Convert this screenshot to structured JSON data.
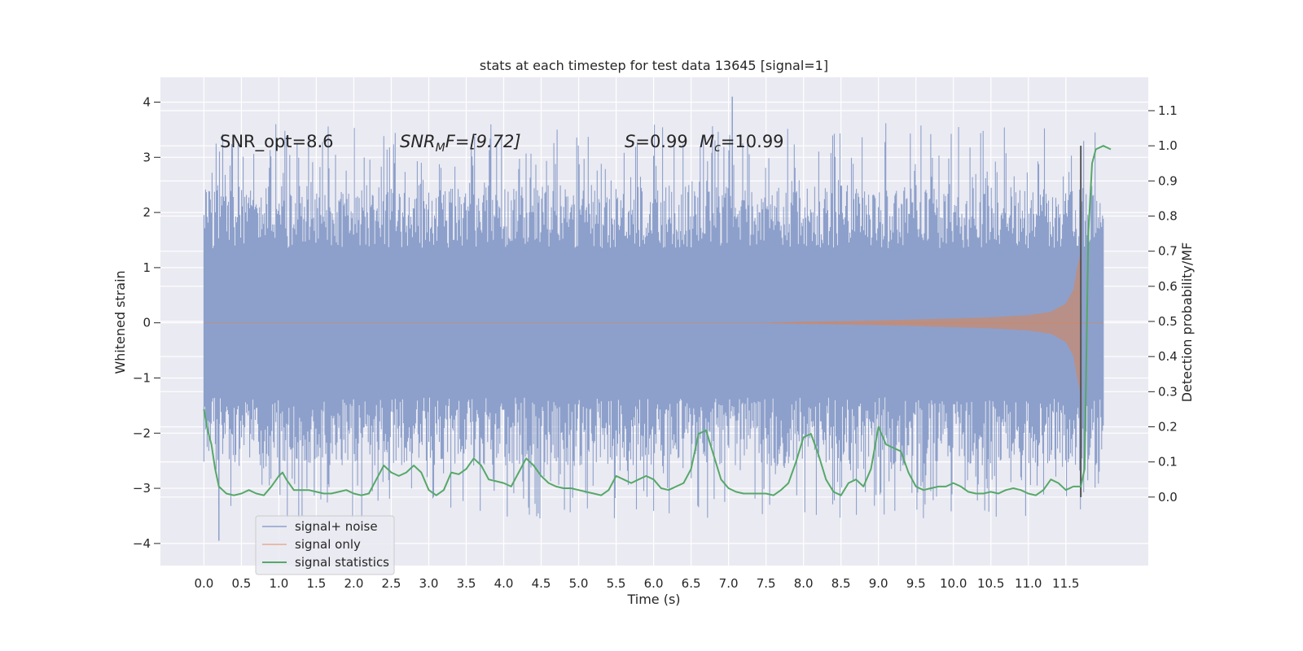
{
  "chart_data": {
    "type": "line",
    "title": "stats at each timestep for test data 13645 [signal=1]",
    "xlabel": "Time (s)",
    "ylabel": "Whitened strain",
    "y2label": "Detection probability/MF",
    "xlim": [
      -0.58,
      12.6
    ],
    "ylim": [
      -4.4,
      4.45
    ],
    "y2lim": [
      -0.195,
      1.195
    ],
    "xticks": [
      "0.0",
      "0.5",
      "1.0",
      "1.5",
      "2.0",
      "2.5",
      "3.0",
      "3.5",
      "4.0",
      "4.5",
      "5.0",
      "5.5",
      "6.0",
      "6.5",
      "7.0",
      "7.5",
      "8.0",
      "8.5",
      "9.0",
      "9.5",
      "10.0",
      "10.5",
      "11.0",
      "11.5"
    ],
    "yticks": [
      "4",
      "3",
      "2",
      "1",
      "0",
      "−1",
      "−2",
      "−3",
      "−4"
    ],
    "y2ticks": [
      "1.1",
      "1.0",
      "0.9",
      "0.8",
      "0.7",
      "0.6",
      "0.5",
      "0.4",
      "0.3",
      "0.2",
      "0.1",
      "0.0"
    ],
    "grid": true,
    "legend": "lower-left",
    "annotations": {
      "snr_opt": "SNR_opt=8.6",
      "snr_mf_sym": "SNR",
      "snr_mf_sub": "M",
      "snr_mf_rest": "F=[9.72]",
      "s_sym": "S",
      "s_rest": "=0.99",
      "mc_sym": "M",
      "mc_sub": "c",
      "mc_rest": "=10.99"
    },
    "merger_time": 11.7,
    "series": [
      {
        "name": "signal+ noise",
        "color": "#8da0cb",
        "t_range": [
          0.0,
          12.0
        ],
        "envelope": {
          "core": 1.35,
          "upper_typical": 2.5,
          "lower_typical": -2.6,
          "max": 4.1,
          "min": -3.95
        }
      },
      {
        "name": "signal only",
        "color": "#dd8452",
        "points": [
          [
            7.5,
            0.005
          ],
          [
            8.0,
            0.02
          ],
          [
            8.5,
            0.03
          ],
          [
            9.0,
            0.045
          ],
          [
            9.5,
            0.06
          ],
          [
            10.0,
            0.08
          ],
          [
            10.5,
            0.1
          ],
          [
            11.0,
            0.14
          ],
          [
            11.3,
            0.2
          ],
          [
            11.5,
            0.35
          ],
          [
            11.6,
            0.6
          ],
          [
            11.65,
            1.0
          ],
          [
            11.7,
            1.3
          ]
        ]
      },
      {
        "name": "signal statistics",
        "color": "#55a868",
        "points": [
          [
            0.0,
            0.25
          ],
          [
            0.05,
            0.19
          ],
          [
            0.1,
            0.15
          ],
          [
            0.15,
            0.08
          ],
          [
            0.2,
            0.03
          ],
          [
            0.25,
            0.02
          ],
          [
            0.3,
            0.01
          ],
          [
            0.4,
            0.005
          ],
          [
            0.5,
            0.01
          ],
          [
            0.6,
            0.02
          ],
          [
            0.7,
            0.01
          ],
          [
            0.8,
            0.005
          ],
          [
            0.9,
            0.03
          ],
          [
            1.0,
            0.06
          ],
          [
            1.05,
            0.07
          ],
          [
            1.1,
            0.05
          ],
          [
            1.2,
            0.02
          ],
          [
            1.3,
            0.02
          ],
          [
            1.4,
            0.02
          ],
          [
            1.5,
            0.015
          ],
          [
            1.6,
            0.01
          ],
          [
            1.7,
            0.01
          ],
          [
            1.8,
            0.015
          ],
          [
            1.9,
            0.02
          ],
          [
            2.0,
            0.01
          ],
          [
            2.1,
            0.005
          ],
          [
            2.2,
            0.01
          ],
          [
            2.3,
            0.05
          ],
          [
            2.4,
            0.09
          ],
          [
            2.5,
            0.07
          ],
          [
            2.6,
            0.06
          ],
          [
            2.7,
            0.07
          ],
          [
            2.8,
            0.09
          ],
          [
            2.9,
            0.07
          ],
          [
            3.0,
            0.02
          ],
          [
            3.1,
            0.005
          ],
          [
            3.2,
            0.02
          ],
          [
            3.3,
            0.07
          ],
          [
            3.4,
            0.065
          ],
          [
            3.5,
            0.08
          ],
          [
            3.6,
            0.11
          ],
          [
            3.7,
            0.09
          ],
          [
            3.8,
            0.05
          ],
          [
            3.9,
            0.045
          ],
          [
            4.0,
            0.04
          ],
          [
            4.1,
            0.03
          ],
          [
            4.2,
            0.07
          ],
          [
            4.3,
            0.11
          ],
          [
            4.4,
            0.09
          ],
          [
            4.5,
            0.06
          ],
          [
            4.6,
            0.04
          ],
          [
            4.7,
            0.03
          ],
          [
            4.8,
            0.025
          ],
          [
            4.9,
            0.025
          ],
          [
            5.0,
            0.02
          ],
          [
            5.1,
            0.015
          ],
          [
            5.2,
            0.01
          ],
          [
            5.3,
            0.005
          ],
          [
            5.4,
            0.02
          ],
          [
            5.5,
            0.06
          ],
          [
            5.6,
            0.05
          ],
          [
            5.7,
            0.04
          ],
          [
            5.8,
            0.05
          ],
          [
            5.9,
            0.06
          ],
          [
            6.0,
            0.05
          ],
          [
            6.1,
            0.025
          ],
          [
            6.2,
            0.02
          ],
          [
            6.3,
            0.03
          ],
          [
            6.4,
            0.04
          ],
          [
            6.5,
            0.08
          ],
          [
            6.6,
            0.18
          ],
          [
            6.7,
            0.19
          ],
          [
            6.8,
            0.12
          ],
          [
            6.9,
            0.05
          ],
          [
            7.0,
            0.025
          ],
          [
            7.1,
            0.015
          ],
          [
            7.2,
            0.01
          ],
          [
            7.3,
            0.01
          ],
          [
            7.4,
            0.01
          ],
          [
            7.5,
            0.01
          ],
          [
            7.6,
            0.005
          ],
          [
            7.7,
            0.02
          ],
          [
            7.8,
            0.04
          ],
          [
            7.9,
            0.1
          ],
          [
            8.0,
            0.17
          ],
          [
            8.1,
            0.18
          ],
          [
            8.2,
            0.12
          ],
          [
            8.3,
            0.05
          ],
          [
            8.4,
            0.015
          ],
          [
            8.5,
            0.005
          ],
          [
            8.6,
            0.04
          ],
          [
            8.7,
            0.05
          ],
          [
            8.8,
            0.03
          ],
          [
            8.9,
            0.08
          ],
          [
            9.0,
            0.2
          ],
          [
            9.1,
            0.15
          ],
          [
            9.2,
            0.14
          ],
          [
            9.3,
            0.13
          ],
          [
            9.4,
            0.07
          ],
          [
            9.5,
            0.03
          ],
          [
            9.6,
            0.02
          ],
          [
            9.7,
            0.025
          ],
          [
            9.8,
            0.03
          ],
          [
            9.9,
            0.03
          ],
          [
            10.0,
            0.04
          ],
          [
            10.1,
            0.03
          ],
          [
            10.2,
            0.015
          ],
          [
            10.3,
            0.01
          ],
          [
            10.4,
            0.01
          ],
          [
            10.5,
            0.015
          ],
          [
            10.6,
            0.01
          ],
          [
            10.7,
            0.02
          ],
          [
            10.8,
            0.025
          ],
          [
            10.9,
            0.02
          ],
          [
            11.0,
            0.01
          ],
          [
            11.1,
            0.005
          ],
          [
            11.2,
            0.02
          ],
          [
            11.3,
            0.05
          ],
          [
            11.4,
            0.04
          ],
          [
            11.5,
            0.02
          ],
          [
            11.6,
            0.03
          ],
          [
            11.7,
            0.03
          ],
          [
            11.75,
            0.08
          ],
          [
            11.8,
            0.75
          ],
          [
            11.85,
            0.95
          ],
          [
            11.9,
            0.99
          ],
          [
            12.0,
            1.0
          ],
          [
            12.1,
            0.99
          ]
        ]
      }
    ]
  }
}
